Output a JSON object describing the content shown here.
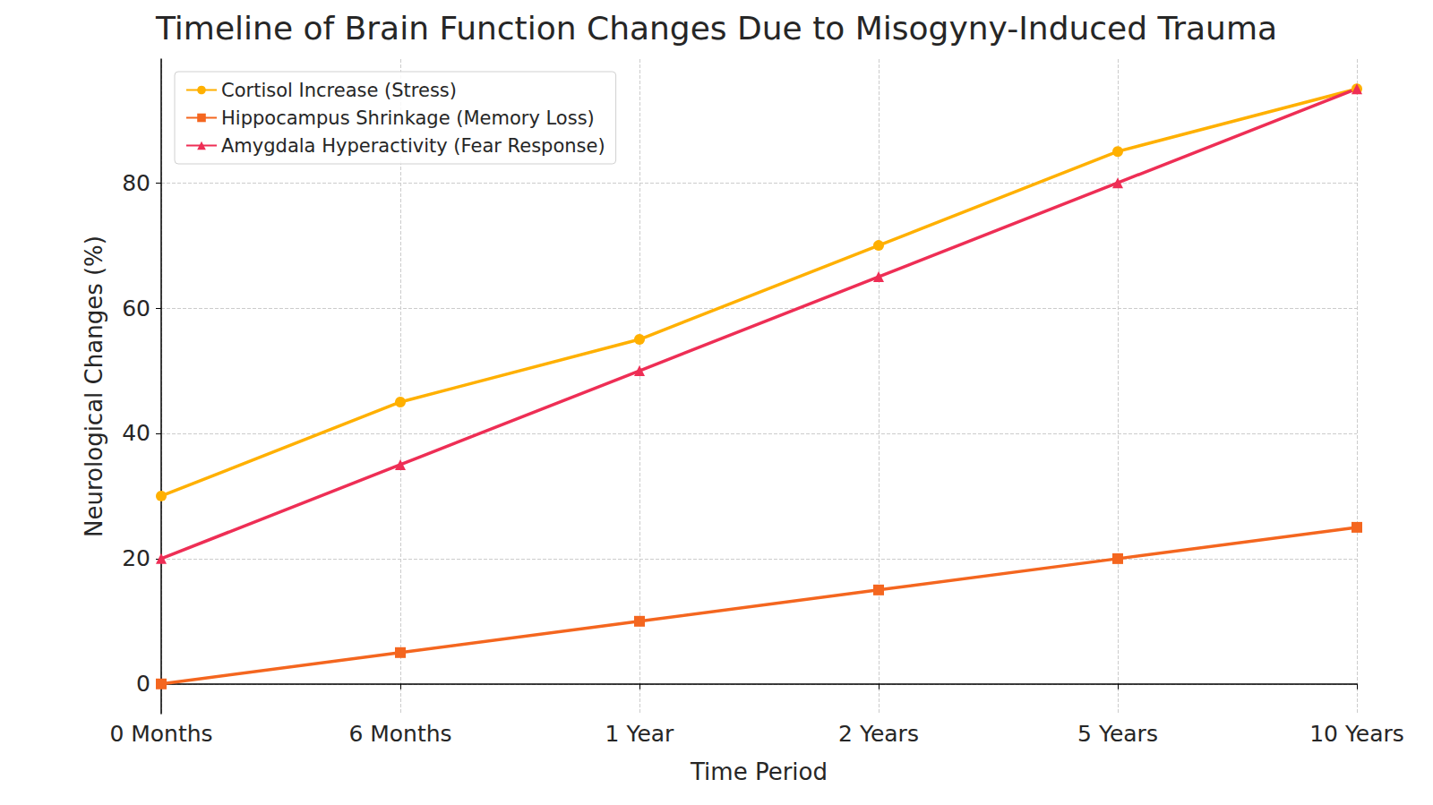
{
  "chart_data": {
    "type": "line",
    "title": "Timeline of Brain Function Changes Due to Misogyny-Induced Trauma",
    "x_label": "Time Period",
    "y_label": "Neurological Changes (%)",
    "categories": [
      "0 Months",
      "6 Months",
      "1 Year",
      "2 Years",
      "5 Years",
      "10 Years"
    ],
    "series": [
      {
        "name": "Cortisol Increase (Stress)",
        "color": "#FFB000",
        "marker": "circle",
        "values": [
          30,
          45,
          55,
          70,
          85,
          95
        ]
      },
      {
        "name": "Hippocampus Shrinkage (Memory Loss)",
        "color": "#F4661F",
        "marker": "square",
        "values": [
          0,
          5,
          10,
          15,
          20,
          25
        ]
      },
      {
        "name": "Amygdala Hyperactivity (Fear Response)",
        "color": "#EE2E55",
        "marker": "triangle",
        "values": [
          20,
          35,
          50,
          65,
          80,
          95
        ]
      }
    ],
    "ylim": [
      -4.75,
      99.75
    ],
    "yticks": [
      0,
      20,
      40,
      60,
      80
    ],
    "grid": true,
    "legend": "upper left"
  }
}
